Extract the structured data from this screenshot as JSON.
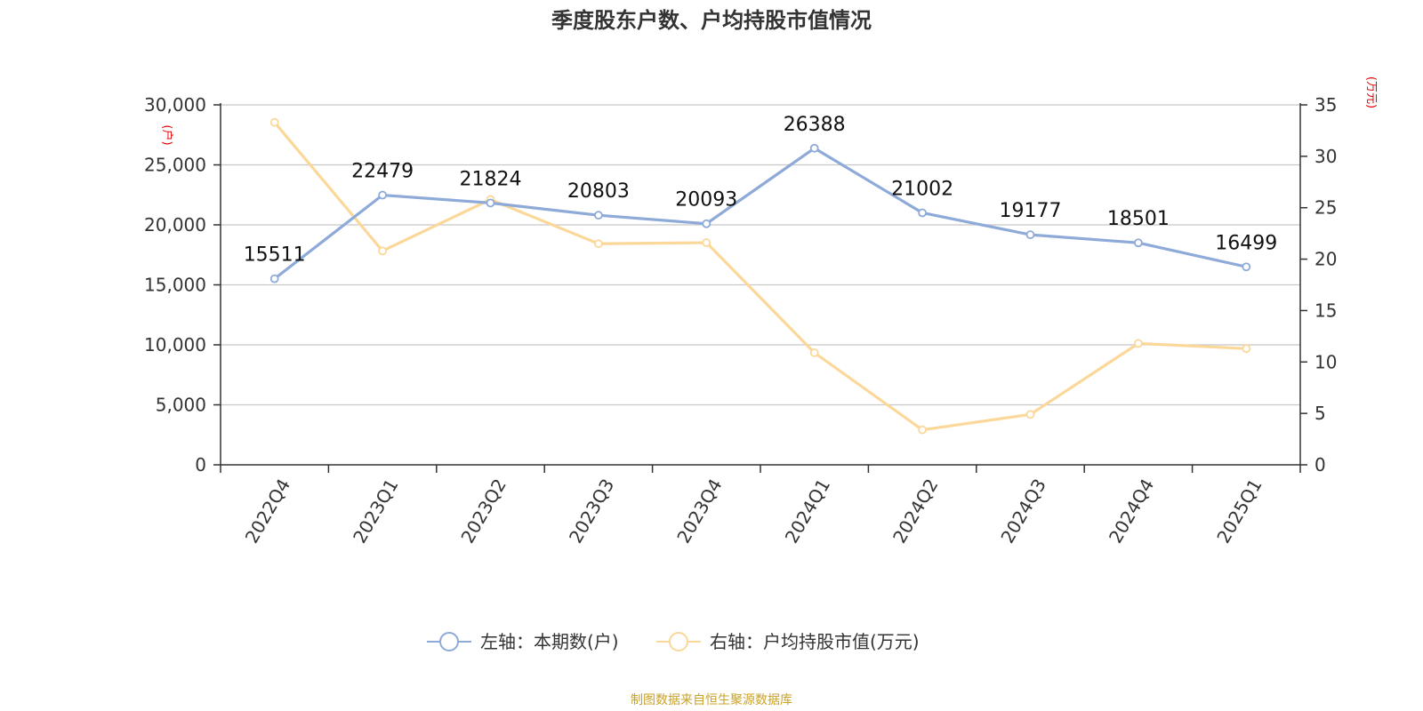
{
  "chart_data": {
    "type": "line",
    "title": "季度股东户数、户均持股市值情况",
    "categories": [
      "2022Q4",
      "2023Q1",
      "2023Q2",
      "2023Q3",
      "2023Q4",
      "2024Q1",
      "2024Q2",
      "2024Q3",
      "2024Q4",
      "2025Q1"
    ],
    "left_axis": {
      "unit_label": "(户)",
      "ylim": [
        0,
        30000
      ],
      "ticks": [
        0,
        5000,
        10000,
        15000,
        20000,
        25000,
        30000
      ],
      "tick_labels": [
        "0",
        "5,000",
        "10,000",
        "15,000",
        "20,000",
        "25,000",
        "30,000"
      ]
    },
    "right_axis": {
      "unit_label": "(万元)",
      "ylim": [
        0,
        35
      ],
      "ticks": [
        0,
        5,
        10,
        15,
        20,
        25,
        30,
        35
      ],
      "tick_labels": [
        "0",
        "5",
        "10",
        "15",
        "20",
        "25",
        "30",
        "35"
      ]
    },
    "series": [
      {
        "name": "左轴：本期数(户)",
        "axis": "left",
        "color": "#8eaad8",
        "values": [
          15511,
          22479,
          21824,
          20803,
          20093,
          26388,
          21002,
          19177,
          18501,
          16499
        ],
        "data_labels": [
          "15511",
          "22479",
          "21824",
          "20803",
          "20093",
          "26388",
          "21002",
          "19177",
          "18501",
          "16499"
        ]
      },
      {
        "name": "右轴：户均持股市值(万元)",
        "axis": "right",
        "color": "#fbd89a",
        "values": [
          33.3,
          20.8,
          25.8,
          21.5,
          21.6,
          10.9,
          3.4,
          4.9,
          11.8,
          11.3
        ]
      }
    ],
    "grid": true,
    "legend_position": "bottom-center"
  },
  "footer": {
    "source": "制图数据来自恒生聚源数据库"
  }
}
